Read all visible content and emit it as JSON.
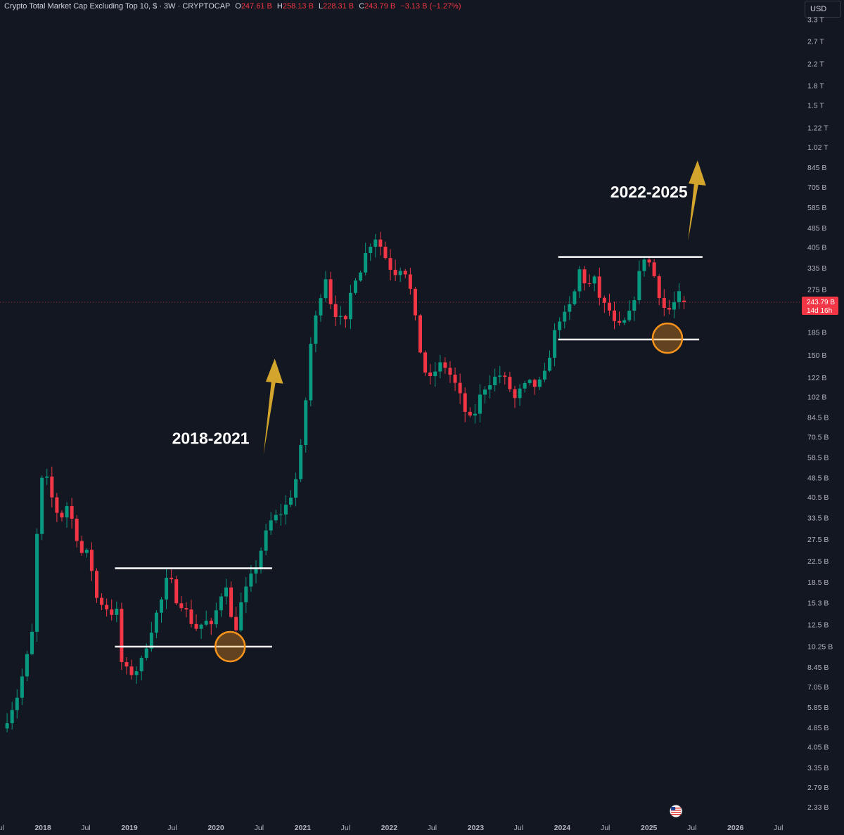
{
  "header": {
    "title": "Crypto Total Market Cap Excluding Top 10, $ · 3W · CRYPTOCAP",
    "open_label": "O",
    "open": "247.61 B",
    "high_label": "H",
    "high": "258.13 B",
    "low_label": "L",
    "low": "228.31 B",
    "close_label": "C",
    "close": "243.79 B",
    "change": "−3.13 B (−1.27%)"
  },
  "currency": "USD",
  "colors": {
    "background": "#131722",
    "up": "#089981",
    "down": "#f23645",
    "arrow": "#d4a52c",
    "circle": "#f7931a",
    "level_line": "#ffffff"
  },
  "annotations": {
    "label_left": "2018-2021",
    "label_right": "2022-2025"
  },
  "price_tag": {
    "price": "243.79 B",
    "countdown": "14d 16h"
  },
  "chart_data": {
    "type": "candlestick",
    "scale": "log",
    "y_unit": "USD",
    "xlabel": "",
    "ylabel": "",
    "x_ticks": [
      "2018",
      "Jul",
      "2019",
      "Jul",
      "2020",
      "Jul",
      "2021",
      "Jul",
      "2022",
      "Jul",
      "2023",
      "Jul",
      "2024",
      "Jul",
      "2025",
      "Jul",
      "2026",
      "Jul"
    ],
    "x_tick_dates": [
      "2018-01-01",
      "2018-07-01",
      "2019-01-01",
      "2019-07-01",
      "2020-01-01",
      "2020-07-01",
      "2021-01-01",
      "2021-07-01",
      "2022-01-01",
      "2022-07-01",
      "2023-01-01",
      "2023-07-01",
      "2024-01-01",
      "2024-07-01",
      "2025-01-01",
      "2025-07-01",
      "2026-01-01",
      "2026-07-01"
    ],
    "y_ticks": [
      "3.3 T",
      "2.7 T",
      "2.2 T",
      "1.8 T",
      "1.5 T",
      "1.22 T",
      "1.02 T",
      "845 B",
      "705 B",
      "585 B",
      "485 B",
      "405 B",
      "335 B",
      "275 B",
      "185 B",
      "150 B",
      "122 B",
      "102 B",
      "84.5 B",
      "70.5 B",
      "58.5 B",
      "48.5 B",
      "40.5 B",
      "33.5 B",
      "27.5 B",
      "22.5 B",
      "18.5 B",
      "15.3 B",
      "12.5 B",
      "10.25 B",
      "8.45 B",
      "7.05 B",
      "5.85 B",
      "4.85 B",
      "4.05 B",
      "3.35 B",
      "2.79 B",
      "2.33 B"
    ],
    "y_tick_values": [
      3300000000000.0,
      2700000000000.0,
      2200000000000.0,
      1800000000000.0,
      1500000000000.0,
      1220000000000.0,
      1020000000000.0,
      845000000000.0,
      705000000000.0,
      585000000000.0,
      485000000000.0,
      405000000000.0,
      335000000000.0,
      275000000000.0,
      185000000000.0,
      150000000000.0,
      122000000000.0,
      102000000000.0,
      84500000000.0,
      70500000000.0,
      58500000000.0,
      48500000000.0,
      40500000000.0,
      33500000000.0,
      27500000000.0,
      22500000000.0,
      18500000000.0,
      15300000000.0,
      12500000000.0,
      10250000000.0,
      8450000000.0,
      7050000000.0,
      5850000000.0,
      4850000000.0,
      4050000000.0,
      3350000000.0,
      2790000000.0,
      2330000000.0
    ],
    "close_path": [
      [
        "2017-07-15",
        4800000000.0
      ],
      [
        "2017-09-15",
        6500000000.0
      ],
      [
        "2017-11-15",
        11000000000.0
      ],
      [
        "2017-12-15",
        40000000000.0
      ],
      [
        "2018-01-05",
        52000000000.0
      ],
      [
        "2018-02-15",
        38000000000.0
      ],
      [
        "2018-03-15",
        33000000000.0
      ],
      [
        "2018-04-15",
        38000000000.0
      ],
      [
        "2018-05-15",
        30000000000.0
      ],
      [
        "2018-06-15",
        24000000000.0
      ],
      [
        "2018-07-15",
        24000000000.0
      ],
      [
        "2018-08-15",
        16000000000.0
      ],
      [
        "2018-09-15",
        15000000000.0
      ],
      [
        "2018-10-15",
        14000000000.0
      ],
      [
        "2018-11-10",
        14000000000.0
      ],
      [
        "2018-11-25",
        9000000000.0
      ],
      [
        "2018-12-15",
        8200000000.0
      ],
      [
        "2019-01-15",
        8000000000.0
      ],
      [
        "2019-02-15",
        8500000000.0
      ],
      [
        "2019-03-15",
        10500000000.0
      ],
      [
        "2019-04-15",
        13000000000.0
      ],
      [
        "2019-05-15",
        15500000000.0
      ],
      [
        "2019-06-15",
        20000000000.0
      ],
      [
        "2019-07-15",
        16000000000.0
      ],
      [
        "2019-08-15",
        15000000000.0
      ],
      [
        "2019-09-15",
        13000000000.0
      ],
      [
        "2019-10-15",
        12000000000.0
      ],
      [
        "2019-11-15",
        13000000000.0
      ],
      [
        "2019-12-15",
        12000000000.0
      ],
      [
        "2020-01-15",
        16000000000.0
      ],
      [
        "2020-02-15",
        18500000000.0
      ],
      [
        "2020-03-15",
        11000000000.0
      ],
      [
        "2020-04-15",
        15000000000.0
      ],
      [
        "2020-05-15",
        18000000000.0
      ],
      [
        "2020-06-15",
        21000000000.0
      ],
      [
        "2020-07-15",
        26000000000.0
      ],
      [
        "2020-08-15",
        32000000000.0
      ],
      [
        "2020-09-15",
        34000000000.0
      ],
      [
        "2020-10-15",
        36000000000.0
      ],
      [
        "2020-11-15",
        42000000000.0
      ],
      [
        "2020-12-15",
        52000000000.0
      ],
      [
        "2021-01-10",
        90000000000.0
      ],
      [
        "2021-02-05",
        170000000000.0
      ],
      [
        "2021-03-05",
        230000000000.0
      ],
      [
        "2021-04-05",
        320000000000.0
      ],
      [
        "2021-05-01",
        240000000000.0
      ],
      [
        "2021-06-01",
        210000000000.0
      ],
      [
        "2021-07-01",
        200000000000.0
      ],
      [
        "2021-08-01",
        300000000000.0
      ],
      [
        "2021-09-01",
        330000000000.0
      ],
      [
        "2021-10-01",
        400000000000.0
      ],
      [
        "2021-11-01",
        450000000000.0
      ],
      [
        "2021-12-01",
        400000000000.0
      ],
      [
        "2022-01-01",
        340000000000.0
      ],
      [
        "2022-02-01",
        320000000000.0
      ],
      [
        "2022-03-01",
        350000000000.0
      ],
      [
        "2022-04-01",
        270000000000.0
      ],
      [
        "2022-05-15",
        150000000000.0
      ],
      [
        "2022-06-15",
        115000000000.0
      ],
      [
        "2022-07-15",
        130000000000.0
      ],
      [
        "2022-08-15",
        140000000000.0
      ],
      [
        "2022-09-15",
        125000000000.0
      ],
      [
        "2022-10-15",
        110000000000.0
      ],
      [
        "2022-11-15",
        90000000000.0
      ],
      [
        "2022-12-15",
        80000000000.0
      ],
      [
        "2023-01-15",
        100000000000.0
      ],
      [
        "2023-02-15",
        115000000000.0
      ],
      [
        "2023-03-15",
        120000000000.0
      ],
      [
        "2023-04-15",
        125000000000.0
      ],
      [
        "2023-05-15",
        115000000000.0
      ],
      [
        "2023-06-15",
        100000000000.0
      ],
      [
        "2023-07-15",
        110000000000.0
      ],
      [
        "2023-08-15",
        115000000000.0
      ],
      [
        "2023-09-15",
        112000000000.0
      ],
      [
        "2023-10-15",
        120000000000.0
      ],
      [
        "2023-11-15",
        160000000000.0
      ],
      [
        "2023-12-15",
        210000000000.0
      ],
      [
        "2024-01-15",
        215000000000.0
      ],
      [
        "2024-02-15",
        250000000000.0
      ],
      [
        "2024-03-15",
        330000000000.0
      ],
      [
        "2024-04-15",
        280000000000.0
      ],
      [
        "2024-05-15",
        300000000000.0
      ],
      [
        "2024-06-15",
        240000000000.0
      ],
      [
        "2024-07-15",
        230000000000.0
      ],
      [
        "2024-08-15",
        190000000000.0
      ],
      [
        "2024-09-15",
        200000000000.0
      ],
      [
        "2024-10-15",
        220000000000.0
      ],
      [
        "2024-11-15",
        300000000000.0
      ],
      [
        "2024-12-15",
        380000000000.0
      ],
      [
        "2025-01-15",
        330000000000.0
      ],
      [
        "2025-02-15",
        260000000000.0
      ],
      [
        "2025-03-15",
        220000000000.0
      ],
      [
        "2025-04-15",
        240000000000.0
      ],
      [
        "2025-05-15",
        265000000000.0
      ],
      [
        "2025-05-29",
        243790000000.0
      ]
    ],
    "last": {
      "open": 247610000000.0,
      "high": 258130000000.0,
      "low": 228310000000.0,
      "close": 243790000000.0,
      "change": -3130000000.0,
      "change_pct": -1.27
    },
    "levels": [
      {
        "from": "2018-11-01",
        "to": "2020-08-25",
        "value": 21000000000.0
      },
      {
        "from": "2018-11-01",
        "to": "2020-08-25",
        "value": 10200000000.0
      },
      {
        "from": "2023-12-15",
        "to": "2025-08-15",
        "value": 370000000000.0
      },
      {
        "from": "2023-12-15",
        "to": "2025-08-01",
        "value": 173000000000.0
      }
    ],
    "circles": [
      {
        "date": "2020-03-01",
        "value": 10200000000.0
      },
      {
        "date": "2025-03-20",
        "value": 175000000000.0
      }
    ],
    "arrows": [
      {
        "from_date": "2020-07-20",
        "from_value": 60000000000.0,
        "to_date": "2020-09-05",
        "to_value": 145000000000.0
      },
      {
        "from_date": "2025-06-15",
        "from_value": 430000000000.0,
        "to_date": "2025-07-25",
        "to_value": 900000000000.0
      }
    ],
    "label_positions": [
      {
        "date": "2019-12-10",
        "value": 66000000000.0,
        "text": "label_left"
      },
      {
        "date": "2025-01-01",
        "value": 640000000000.0,
        "text": "label_right"
      }
    ]
  }
}
